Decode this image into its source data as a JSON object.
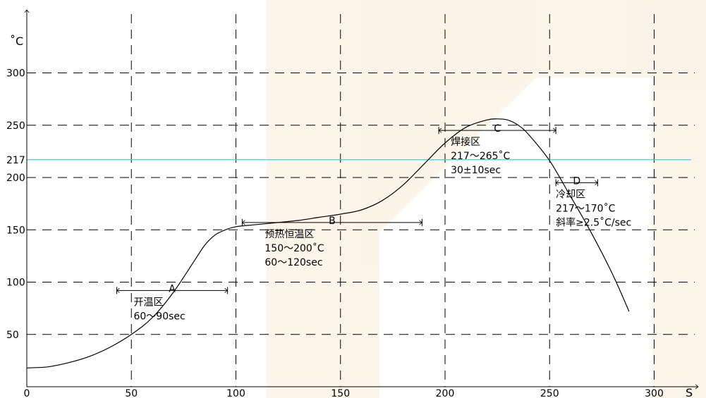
{
  "chart_data": {
    "type": "line",
    "x_unit": "S",
    "y_unit": "˚C",
    "xlim": [
      0,
      320
    ],
    "ylim": [
      0,
      330
    ],
    "x_ticks": [
      0,
      50,
      100,
      150,
      200,
      250,
      300
    ],
    "x_tick_labels": [
      "0",
      "50",
      "100",
      "150",
      "200",
      "250",
      "300"
    ],
    "y_ticks": [
      50,
      100,
      150,
      200,
      217,
      250,
      300
    ],
    "y_tick_labels": [
      "50",
      "100",
      "150",
      "200",
      "217",
      "250",
      "300"
    ],
    "grid": true,
    "grid_x": [
      50,
      100,
      150,
      200,
      250,
      300
    ],
    "grid_y": [
      50,
      100,
      150,
      200,
      250,
      300
    ],
    "reference_line": {
      "y": 217,
      "color": "#33d6e6"
    },
    "curve_color": "#000000",
    "series": [
      {
        "x": [
          0,
          10,
          20,
          30,
          40,
          50,
          60,
          70,
          80,
          85,
          90,
          95,
          100,
          110,
          120,
          130,
          140,
          150,
          160,
          170,
          180,
          190,
          200,
          210,
          220,
          225,
          230,
          235,
          240,
          250,
          260,
          270,
          280,
          288
        ],
        "values": [
          18,
          19,
          23,
          29,
          38,
          50,
          66,
          90,
          120,
          135,
          145,
          150,
          153,
          155,
          157,
          159,
          162,
          165,
          169,
          178,
          193,
          213,
          233,
          248,
          255,
          256,
          255,
          250,
          241,
          216,
          182,
          147,
          108,
          72
        ]
      }
    ],
    "zones": [
      {
        "letter": "A",
        "x_start": 43,
        "x_end": 96,
        "y": 92,
        "lines": [
          "开温区",
          "60～90sec"
        ]
      },
      {
        "letter": "B",
        "x_start": 103,
        "x_end": 189,
        "y": 157,
        "lines": [
          "预热恒温区",
          "150～200˚C",
          "60～120sec"
        ]
      },
      {
        "letter": "C",
        "x_start": 197,
        "x_end": 253,
        "y": 245,
        "lines": [
          "焊接区",
          "217～265˚C",
          "30±10sec"
        ]
      },
      {
        "letter": "D",
        "x_start": 253,
        "x_end": 273,
        "y": 195,
        "lines": [
          "冷却区",
          "217～170˚C",
          "斜率≥2.5˚C/sec"
        ]
      }
    ]
  }
}
